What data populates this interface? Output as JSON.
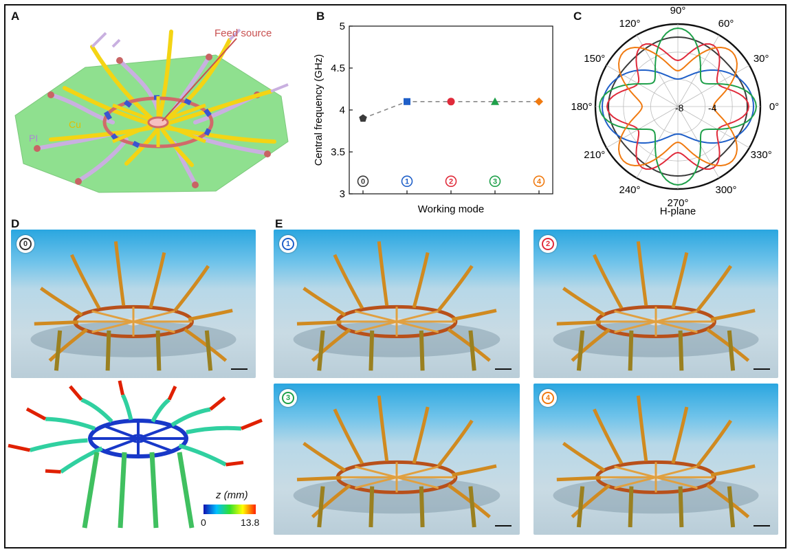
{
  "panels": {
    "A": {
      "label": "A",
      "annotations": {
        "feed_source": "Feed source",
        "cu": "Cu",
        "pi": "PI"
      },
      "colors": {
        "substrate": "#8fe08f",
        "cu": "#f4d414",
        "pi": "#c9b0e0",
        "blue_link": "#3a55d0",
        "ring": "#d06a6a",
        "feed_line": "#c85050"
      }
    },
    "B": {
      "label": "B"
    },
    "C": {
      "label": "C",
      "angle_labels": [
        "0°",
        "30°",
        "60°",
        "90°",
        "120°",
        "150°",
        "180°",
        "210°",
        "240°",
        "270°",
        "300°",
        "330°"
      ],
      "radial_labels": [
        "-8",
        "-4"
      ],
      "xlabel": "H-plane"
    },
    "D": {
      "label": "D",
      "badge": "0",
      "colorbar": {
        "label": "z (mm)",
        "min": "0",
        "max": "13.8",
        "colors": [
          "#1010b0",
          "#00c0ff",
          "#30e030",
          "#ffff00",
          "#ff2000"
        ]
      }
    },
    "E": {
      "label": "E",
      "badges": [
        {
          "text": "1",
          "color": "#1f5fc8"
        },
        {
          "text": "2",
          "color": "#e02a3a"
        },
        {
          "text": "3",
          "color": "#1fa04a"
        },
        {
          "text": "4",
          "color": "#f07a10"
        }
      ]
    }
  },
  "chart_data": [
    {
      "type": "scatter",
      "panel": "B",
      "xlabel": "Working mode",
      "ylabel": "Central frequency (GHz)",
      "ylim": [
        3,
        5
      ],
      "yticks": [
        "3",
        "3.5",
        "4",
        "4.5",
        "5"
      ],
      "x": [
        0,
        1,
        2,
        3,
        4
      ],
      "mode_labels": [
        "0",
        "1",
        "2",
        "3",
        "4"
      ],
      "series": [
        {
          "values": [
            3.9,
            4.1,
            4.1,
            4.1,
            4.1
          ],
          "markers": [
            "pentagon",
            "square",
            "circle",
            "triangle",
            "diamond"
          ],
          "colors": [
            "#3a3a3a",
            "#1f5fc8",
            "#e02a3a",
            "#1fa04a",
            "#f07a10"
          ],
          "line": "dashed"
        }
      ],
      "grid": false
    },
    {
      "type": "polar",
      "panel": "C",
      "rlim": [
        -12,
        0
      ],
      "series": [
        {
          "color": "#3a3a3a",
          "pattern": "omni",
          "r0": -2.2,
          "amp": 0.3,
          "lobes": 4,
          "phase": 0
        },
        {
          "color": "#1f5fc8",
          "pattern": "two-lobe",
          "r0": -4.5,
          "amp": 3.5,
          "lobes": 2,
          "phase": 0
        },
        {
          "color": "#e02a3a",
          "pattern": "six-lobe",
          "r0": -3.5,
          "amp": 1.8,
          "lobes": 6,
          "phase": 0
        },
        {
          "color": "#1fa04a",
          "pattern": "four-lobe",
          "r0": -3.8,
          "amp": 3.2,
          "lobes": 4,
          "phase": 0
        },
        {
          "color": "#f07a10",
          "pattern": "four-lobe-rot",
          "r0": -3.8,
          "amp": 3.0,
          "lobes": 4,
          "phase": 45
        }
      ]
    }
  ]
}
